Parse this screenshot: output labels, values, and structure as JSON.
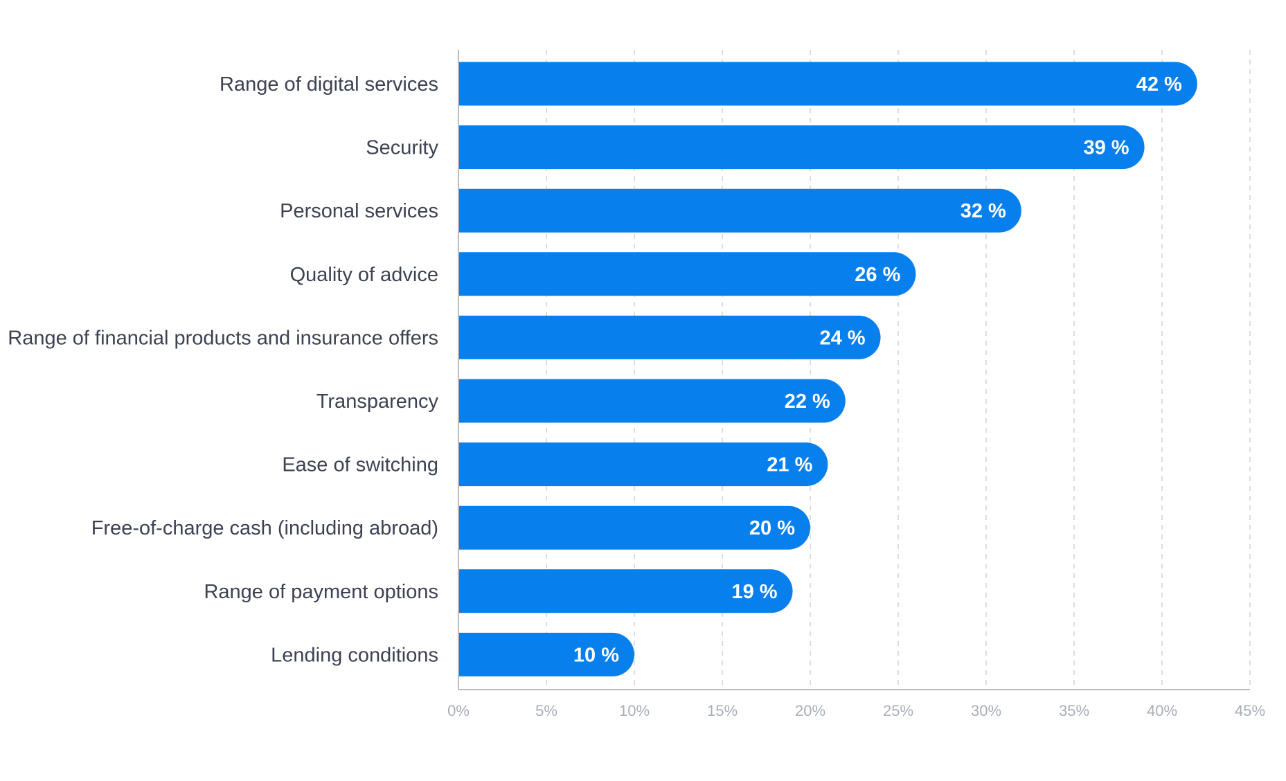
{
  "chart_data": {
    "type": "bar",
    "orientation": "horizontal",
    "title": "",
    "xlabel": "",
    "ylabel": "",
    "categories": [
      "Range of digital services",
      "Security",
      "Personal services",
      "Quality of advice",
      "Range of financial products and insurance offers",
      "Transparency",
      "Ease of switching",
      "Free-of-charge cash (including abroad)",
      "Range of payment options",
      "Lending conditions"
    ],
    "values": [
      42,
      39,
      32,
      26,
      24,
      22,
      21,
      20,
      19,
      10
    ],
    "value_labels": [
      "42 %",
      "39 %",
      "32 %",
      "26 %",
      "24 %",
      "22 %",
      "21 %",
      "20 %",
      "19 %",
      "10 %"
    ],
    "xlim": [
      0,
      45
    ],
    "xticks": [
      0,
      5,
      10,
      15,
      20,
      25,
      30,
      35,
      40,
      45
    ],
    "xtick_labels": [
      "0%",
      "5%",
      "10%",
      "15%",
      "20%",
      "25%",
      "30%",
      "35%",
      "40%",
      "45%"
    ],
    "grid": "vertical dashed",
    "legend": "none",
    "colors": {
      "bar": "#077fed",
      "category_text": "#3b4252",
      "value_text": "#ffffff",
      "tick_text": "#a7adb8",
      "grid": "#cfd3d8",
      "axis": "#b9bdc3"
    }
  }
}
